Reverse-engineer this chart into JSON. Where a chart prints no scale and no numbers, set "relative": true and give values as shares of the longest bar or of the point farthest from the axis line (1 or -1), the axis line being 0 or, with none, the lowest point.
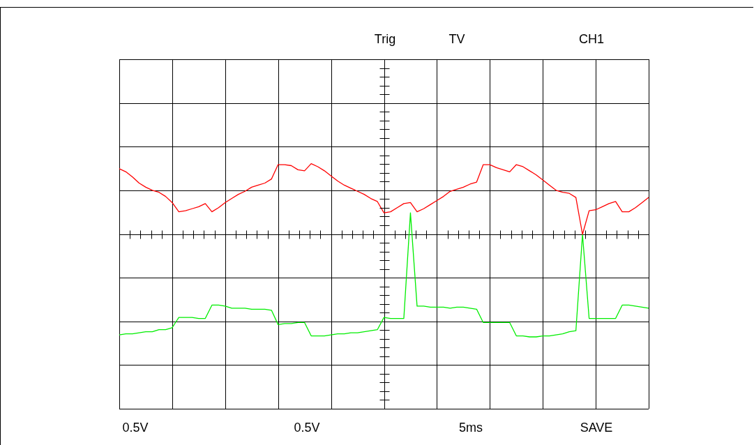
{
  "chart_data": {
    "type": "line",
    "relative": true,
    "grid": true,
    "legend": false,
    "marker": "none",
    "line_style": "solid",
    "categories": [
      null,
      null,
      null,
      null,
      null,
      null,
      null,
      null,
      null,
      null,
      null,
      null,
      null,
      null,
      null,
      null,
      null,
      null,
      null,
      null,
      null,
      null,
      null,
      null,
      null,
      null,
      null,
      null,
      null,
      null,
      null,
      null,
      null,
      null,
      null,
      null,
      null,
      null,
      null,
      null,
      null,
      null,
      null,
      null,
      null,
      null,
      null,
      null,
      null,
      null,
      null,
      null,
      null,
      null,
      null,
      null,
      null,
      null,
      null,
      null,
      null,
      null,
      null,
      null,
      null,
      null,
      null,
      null,
      null,
      null,
      null,
      null,
      null,
      null,
      null,
      null,
      null,
      null,
      null,
      null,
      null
    ],
    "annotations": [
      "Trig",
      "TV",
      "CH1",
      "0.5V",
      "0.5V",
      "5ms",
      "SAVE"
    ],
    "series": [
      {
        "color": "#ff0000",
        "values": [
          0.64,
          0.61,
          0.56,
          0.5,
          0.46,
          0.43,
          0.41,
          0.37,
          0.31,
          0.22,
          0.23,
          0.25,
          0.27,
          0.3,
          0.22,
          0.26,
          0.31,
          0.35,
          0.39,
          0.42,
          0.46,
          0.48,
          0.5,
          0.54,
          0.68,
          0.68,
          0.67,
          0.63,
          0.62,
          0.69,
          0.66,
          0.62,
          0.57,
          0.52,
          0.48,
          0.45,
          0.42,
          0.39,
          0.35,
          0.32,
          0.21,
          0.22,
          0.26,
          0.3,
          0.31,
          0.22,
          0.25,
          0.29,
          0.33,
          0.37,
          0.42,
          0.44,
          0.46,
          0.49,
          0.51,
          0.68,
          0.68,
          0.65,
          0.63,
          0.61,
          0.68,
          0.66,
          0.62,
          0.58,
          0.53,
          0.48,
          0.43,
          0.41,
          0.4,
          0.36,
          0,
          0.23,
          0.24,
          0.27,
          0.3,
          0.32,
          0.22,
          0.22,
          0.26,
          0.31,
          0.36
        ]
      },
      {
        "color": "#00ee00",
        "values": [
          -0.98,
          -0.97,
          -0.97,
          -0.96,
          -0.95,
          -0.95,
          -0.93,
          -0.93,
          -0.91,
          -0.81,
          -0.81,
          -0.81,
          -0.82,
          -0.82,
          -0.69,
          -0.69,
          -0.7,
          -0.72,
          -0.72,
          -0.72,
          -0.73,
          -0.73,
          -0.73,
          -0.74,
          -0.88,
          -0.87,
          -0.87,
          -0.86,
          -0.86,
          -0.99,
          -0.99,
          -0.99,
          -0.98,
          -0.97,
          -0.97,
          -0.96,
          -0.96,
          -0.95,
          -0.94,
          -0.93,
          -0.81,
          -0.82,
          -0.82,
          -0.82,
          0.21,
          -0.7,
          -0.7,
          -0.71,
          -0.71,
          -0.71,
          -0.72,
          -0.71,
          -0.71,
          -0.72,
          -0.73,
          -0.86,
          -0.86,
          -0.86,
          -0.86,
          -0.86,
          -0.99,
          -0.99,
          -1,
          -1,
          -0.99,
          -0.99,
          -0.98,
          -0.97,
          -0.95,
          -0.94,
          0,
          -0.82,
          -0.82,
          -0.82,
          -0.82,
          -0.82,
          -0.69,
          -0.69,
          -0.7,
          -0.71,
          -0.72
        ]
      }
    ]
  }
}
